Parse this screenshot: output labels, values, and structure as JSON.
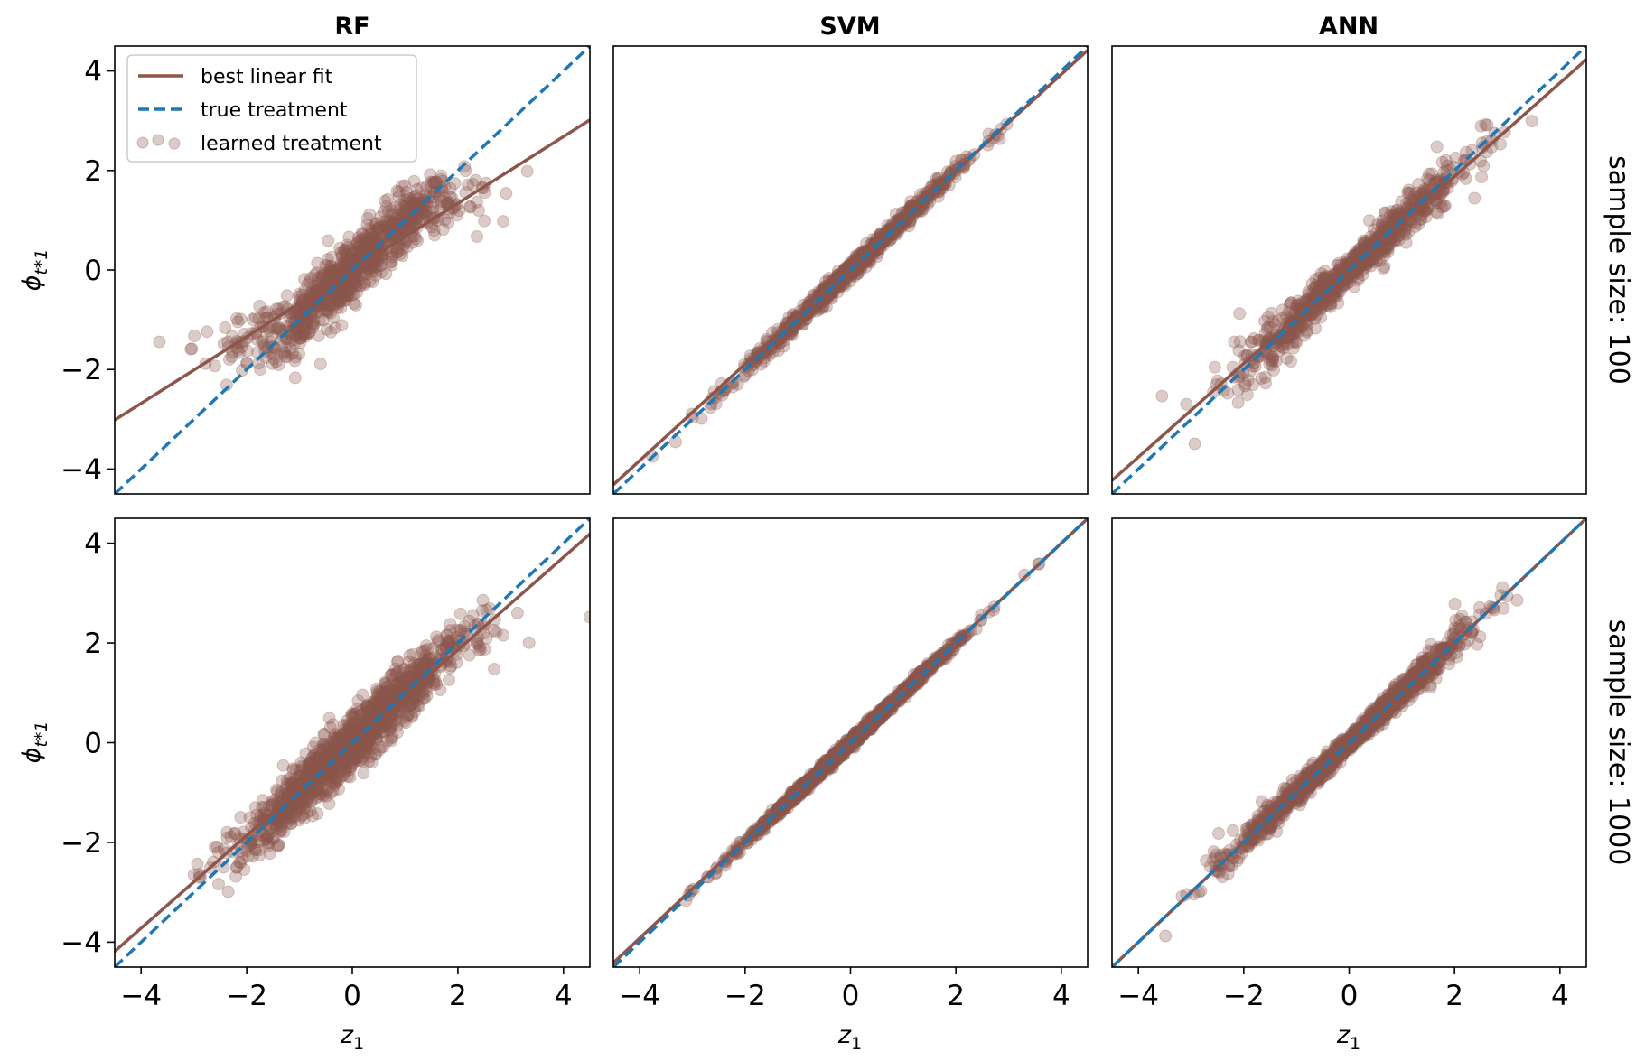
{
  "chart_data": {
    "type": "scatter",
    "column_titles": [
      "RF",
      "SVM",
      "ANN"
    ],
    "row_labels": [
      "sample size: 100",
      "sample size: 1000"
    ],
    "xlabel": "z",
    "xlabel_sub": "1",
    "ylabel": "ϕ",
    "ylabel_sub": "t*1",
    "xlim": [
      -4.5,
      4.5
    ],
    "ylim": [
      -4.5,
      4.5
    ],
    "xticks": [
      -4,
      -2,
      0,
      2,
      4
    ],
    "yticks": [
      -4,
      -2,
      0,
      2,
      4
    ],
    "xtick_labels": [
      "−4",
      "−2",
      "0",
      "2",
      "4"
    ],
    "ytick_labels": [
      "−4",
      "−2",
      "0",
      "2",
      "4"
    ],
    "legend": {
      "position": "upper-left",
      "panel": "RF, sample size: 100",
      "entries": [
        "best linear fit",
        "true treatment",
        "learned treatment"
      ]
    },
    "colors": {
      "fit": "#8c564b",
      "truth": "#1f77b4",
      "points": "#8c564b",
      "point_alpha": 0.3
    },
    "true_treatment": {
      "slope": 1.0,
      "intercept": 0.0
    },
    "panels": [
      {
        "row": 0,
        "col": 0,
        "model": "RF",
        "sample_size": 100,
        "fit_slope": 0.67,
        "fit_intercept": 0.0,
        "spread": "rf",
        "n_points": 900,
        "noise": 0.32
      },
      {
        "row": 0,
        "col": 1,
        "model": "SVM",
        "sample_size": 100,
        "fit_slope": 0.97,
        "fit_intercept": 0.05,
        "spread": "linear",
        "n_points": 900,
        "noise": 0.09
      },
      {
        "row": 0,
        "col": 2,
        "model": "ANN",
        "sample_size": 100,
        "fit_slope": 0.94,
        "fit_intercept": 0.0,
        "spread": "ann",
        "n_points": 900,
        "noise": 0.22
      },
      {
        "row": 1,
        "col": 0,
        "model": "RF",
        "sample_size": 1000,
        "fit_slope": 0.93,
        "fit_intercept": 0.0,
        "spread": "rf",
        "n_points": 1400,
        "noise": 0.28
      },
      {
        "row": 1,
        "col": 1,
        "model": "SVM",
        "sample_size": 1000,
        "fit_slope": 0.99,
        "fit_intercept": 0.04,
        "spread": "linear",
        "n_points": 1400,
        "noise": 0.05
      },
      {
        "row": 1,
        "col": 2,
        "model": "ANN",
        "sample_size": 1000,
        "fit_slope": 1.0,
        "fit_intercept": 0.0,
        "spread": "ann",
        "n_points": 1400,
        "noise": 0.12
      }
    ]
  }
}
